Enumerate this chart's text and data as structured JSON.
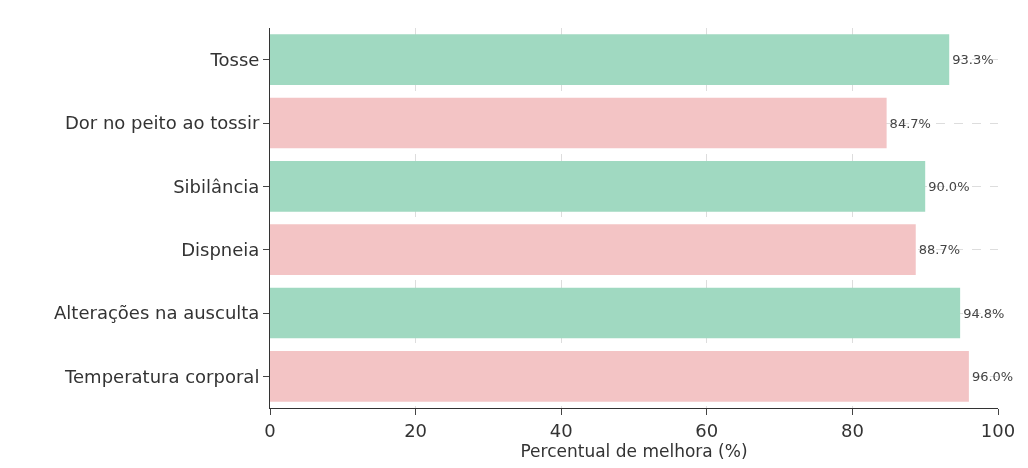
{
  "chart_data": {
    "type": "bar",
    "orientation": "horizontal",
    "xlabel": "Percentual de melhora (%)",
    "categories": [
      "Tosse",
      "Dor no peito ao tossir",
      "Sibilância",
      "Dispneia",
      "Alterações na ausculta",
      "Temperatura corporal"
    ],
    "values": [
      93.3,
      84.7,
      90.0,
      88.7,
      94.8,
      96.0
    ],
    "colors": [
      "#a0d9c1",
      "#f3c4c5",
      "#a0d9c1",
      "#f3c4c5",
      "#a0d9c1",
      "#f3c4c5"
    ],
    "value_labels": [
      "93.3%",
      "84.7%",
      "90.0%",
      "88.7%",
      "94.8%",
      "96.0%"
    ],
    "xlim": [
      0,
      100
    ],
    "xticks": [
      0,
      20,
      40,
      60,
      80,
      100
    ],
    "grid": true
  }
}
